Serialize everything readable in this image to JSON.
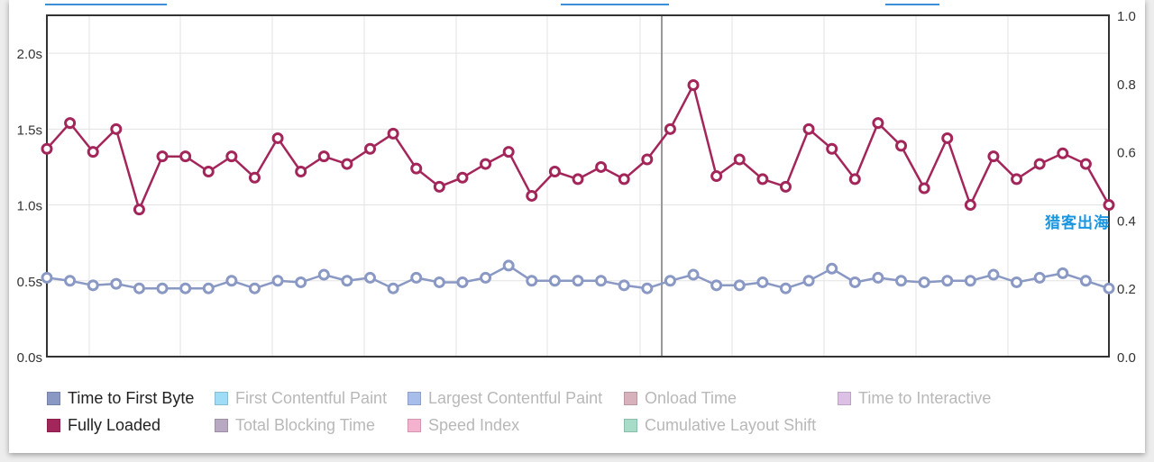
{
  "chart_data": {
    "type": "line",
    "left_axis": {
      "ticks": [
        "0.0s",
        "0.5s",
        "1.0s",
        "1.5s",
        "2.0s"
      ],
      "tick_values": [
        0,
        0.5,
        1.0,
        1.5,
        2.0
      ],
      "range": [
        0,
        2.25
      ]
    },
    "right_axis": {
      "ticks": [
        "0.0",
        "0.2",
        "0.4",
        "0.6",
        "0.8",
        "1.0"
      ],
      "tick_values": [
        0,
        0.2,
        0.4,
        0.6,
        0.8,
        1.0
      ],
      "range": [
        0,
        1.0
      ]
    },
    "grid": true,
    "point_count": 47,
    "series": [
      {
        "name": "Fully Loaded",
        "color": "#a3265a",
        "axis": "left",
        "values": [
          1.37,
          1.54,
          1.35,
          1.5,
          0.97,
          1.32,
          1.32,
          1.22,
          1.32,
          1.18,
          1.44,
          1.22,
          1.32,
          1.27,
          1.37,
          1.47,
          1.24,
          1.12,
          1.18,
          1.27,
          1.35,
          1.06,
          1.22,
          1.17,
          1.25,
          1.17,
          1.3,
          1.5,
          1.79,
          1.19,
          1.3,
          1.17,
          1.12,
          1.5,
          1.37,
          1.17,
          1.54,
          1.39,
          1.11,
          1.44,
          1.0,
          1.32,
          1.17,
          1.27,
          1.34,
          1.27,
          1.0
        ]
      },
      {
        "name": "Time to First Byte",
        "color": "#8a98c4",
        "axis": "left",
        "values": [
          0.52,
          0.5,
          0.47,
          0.48,
          0.45,
          0.45,
          0.45,
          0.45,
          0.5,
          0.45,
          0.5,
          0.49,
          0.54,
          0.5,
          0.52,
          0.45,
          0.52,
          0.49,
          0.49,
          0.52,
          0.6,
          0.5,
          0.5,
          0.5,
          0.5,
          0.47,
          0.45,
          0.5,
          0.54,
          0.47,
          0.47,
          0.49,
          0.45,
          0.5,
          0.58,
          0.49,
          0.52,
          0.5,
          0.49,
          0.5,
          0.5,
          0.54,
          0.49,
          0.52,
          0.55,
          0.5,
          0.45
        ]
      }
    ]
  },
  "legend": {
    "items": [
      {
        "label": "Time to First Byte",
        "color": "#8a98c4",
        "active": true
      },
      {
        "label": "First Contentful Paint",
        "color": "#9fdcf5",
        "active": false
      },
      {
        "label": "Largest Contentful Paint",
        "color": "#a7bdea",
        "active": false
      },
      {
        "label": "Onload Time",
        "color": "#d7b2bd",
        "active": false
      },
      {
        "label": "Time to Interactive",
        "color": "#dcc0e6",
        "active": false
      },
      {
        "label": "Fully Loaded",
        "color": "#a3265a",
        "active": true
      },
      {
        "label": "Total Blocking Time",
        "color": "#b8a8c2",
        "active": false
      },
      {
        "label": "Speed Index",
        "color": "#f5b2ce",
        "active": false
      },
      {
        "label": "Cumulative Layout Shift",
        "color": "#a7ddc8",
        "active": false
      }
    ]
  },
  "watermark": {
    "text": "猎客出海",
    "color": "#1a96e0"
  }
}
